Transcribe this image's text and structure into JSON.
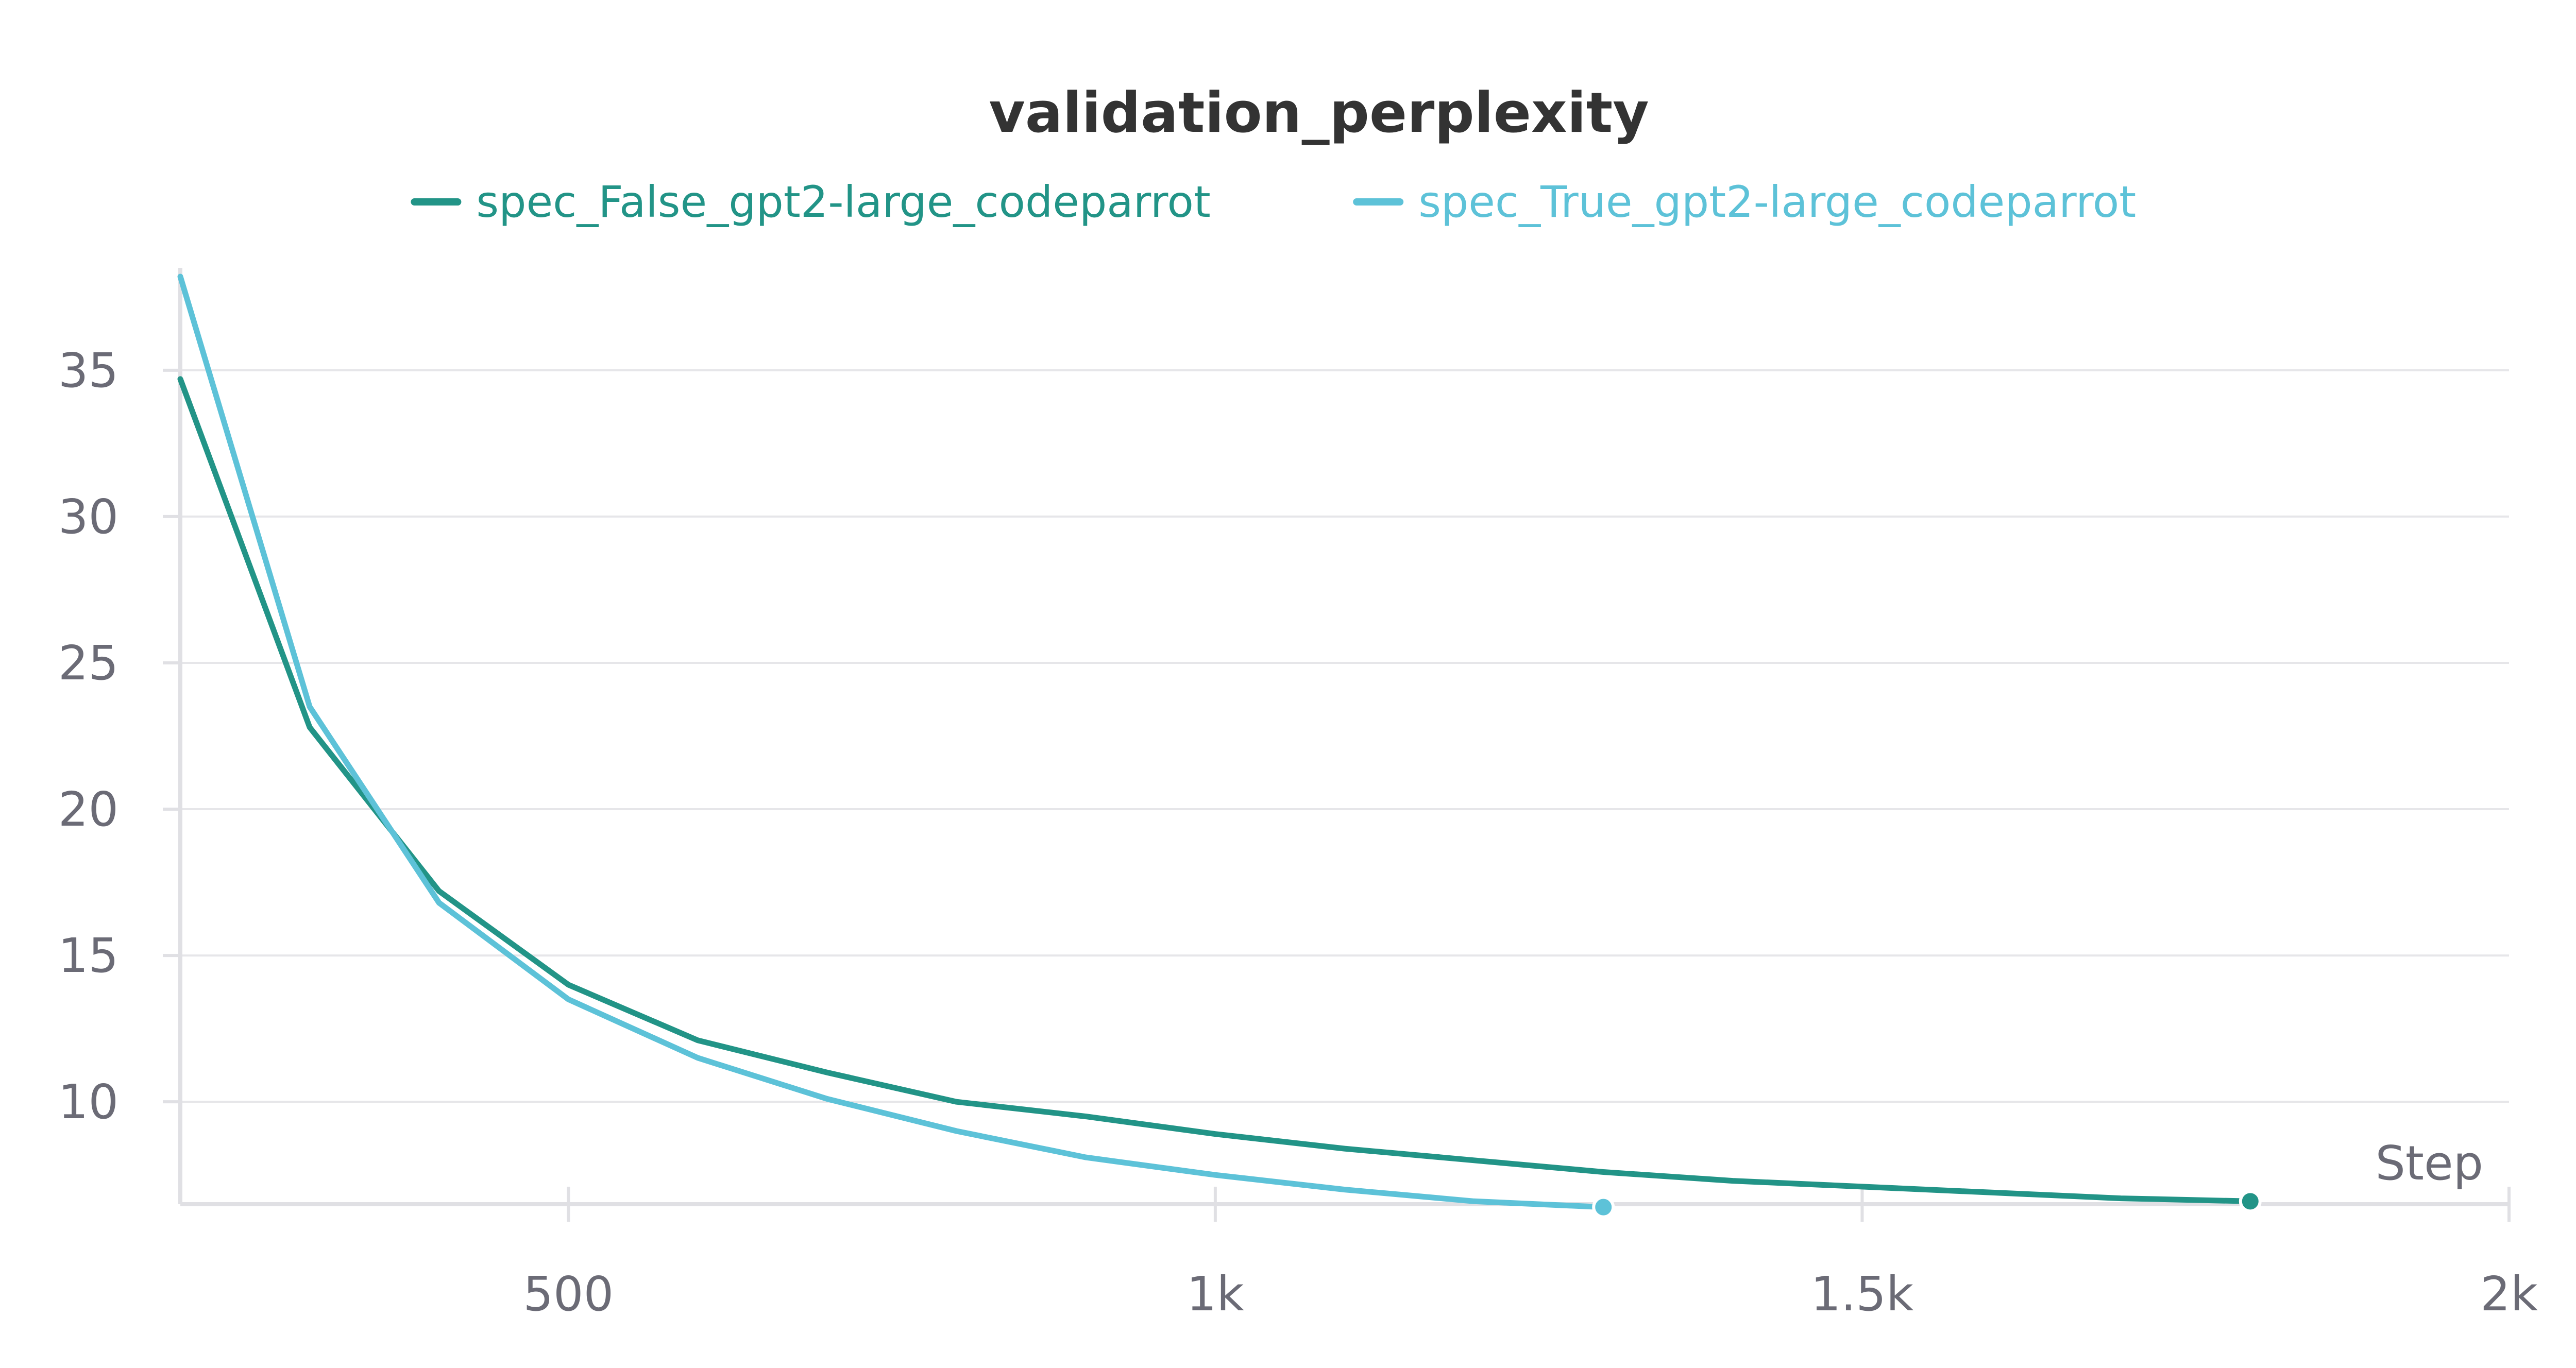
{
  "chart_data": {
    "type": "line",
    "title": "validation_perplexity",
    "xlabel": "Step",
    "ylabel": "",
    "xlim": [
      200,
      2000
    ],
    "ylim": [
      6.5,
      38.5
    ],
    "x_ticks": [
      500,
      1000,
      1500,
      2000
    ],
    "x_tick_labels": [
      "500",
      "1k",
      "1.5k",
      "2k"
    ],
    "y_ticks": [
      10,
      15,
      20,
      25,
      30,
      35
    ],
    "y_tick_labels": [
      "10",
      "15",
      "20",
      "25",
      "30",
      "35"
    ],
    "grid": true,
    "legend_position": "top-center",
    "series": [
      {
        "name": "spec_False_gpt2-large_codeparrot",
        "color": "#229487",
        "x": [
          200,
          300,
          400,
          500,
          600,
          700,
          800,
          900,
          1000,
          1100,
          1200,
          1300,
          1400,
          1500,
          1600,
          1700,
          1800
        ],
        "values": [
          34.7,
          22.8,
          17.2,
          14.0,
          12.1,
          11.0,
          10.0,
          9.5,
          8.9,
          8.4,
          8.0,
          7.6,
          7.3,
          7.1,
          6.9,
          6.7,
          6.6
        ]
      },
      {
        "name": "spec_True_gpt2-large_codeparrot",
        "color": "#5dc2d8",
        "x": [
          200,
          300,
          400,
          500,
          600,
          700,
          800,
          900,
          1000,
          1100,
          1200,
          1300
        ],
        "values": [
          38.2,
          23.5,
          16.8,
          13.5,
          11.5,
          10.1,
          9.0,
          8.1,
          7.5,
          7.0,
          6.6,
          6.4
        ]
      }
    ]
  }
}
